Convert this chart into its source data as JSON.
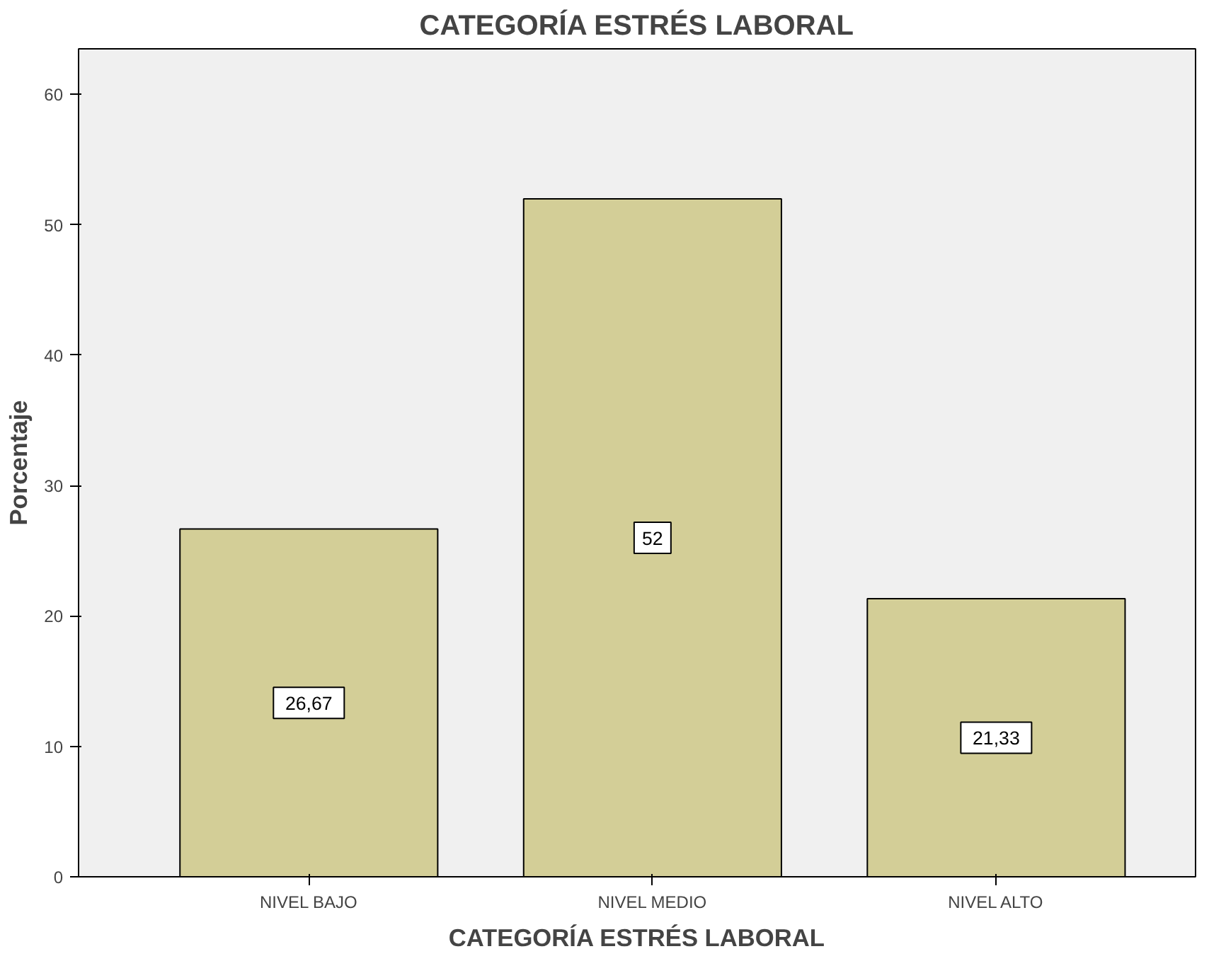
{
  "chart_data": {
    "type": "bar",
    "title": "CATEGORÍA ESTRÉS LABORAL",
    "xlabel": "CATEGORÍA ESTRÉS LABORAL",
    "ylabel": "Porcentaje",
    "categories": [
      "NIVEL BAJO",
      "NIVEL MEDIO",
      "NIVEL ALTO"
    ],
    "values": [
      26.67,
      52,
      21.33
    ],
    "value_labels": [
      "26,67",
      "52",
      "21,33"
    ],
    "color": "#d3ce97",
    "ylim": [
      0,
      63.5
    ],
    "yticks": [
      0,
      10,
      20,
      30,
      40,
      50,
      60
    ],
    "grid": false
  }
}
